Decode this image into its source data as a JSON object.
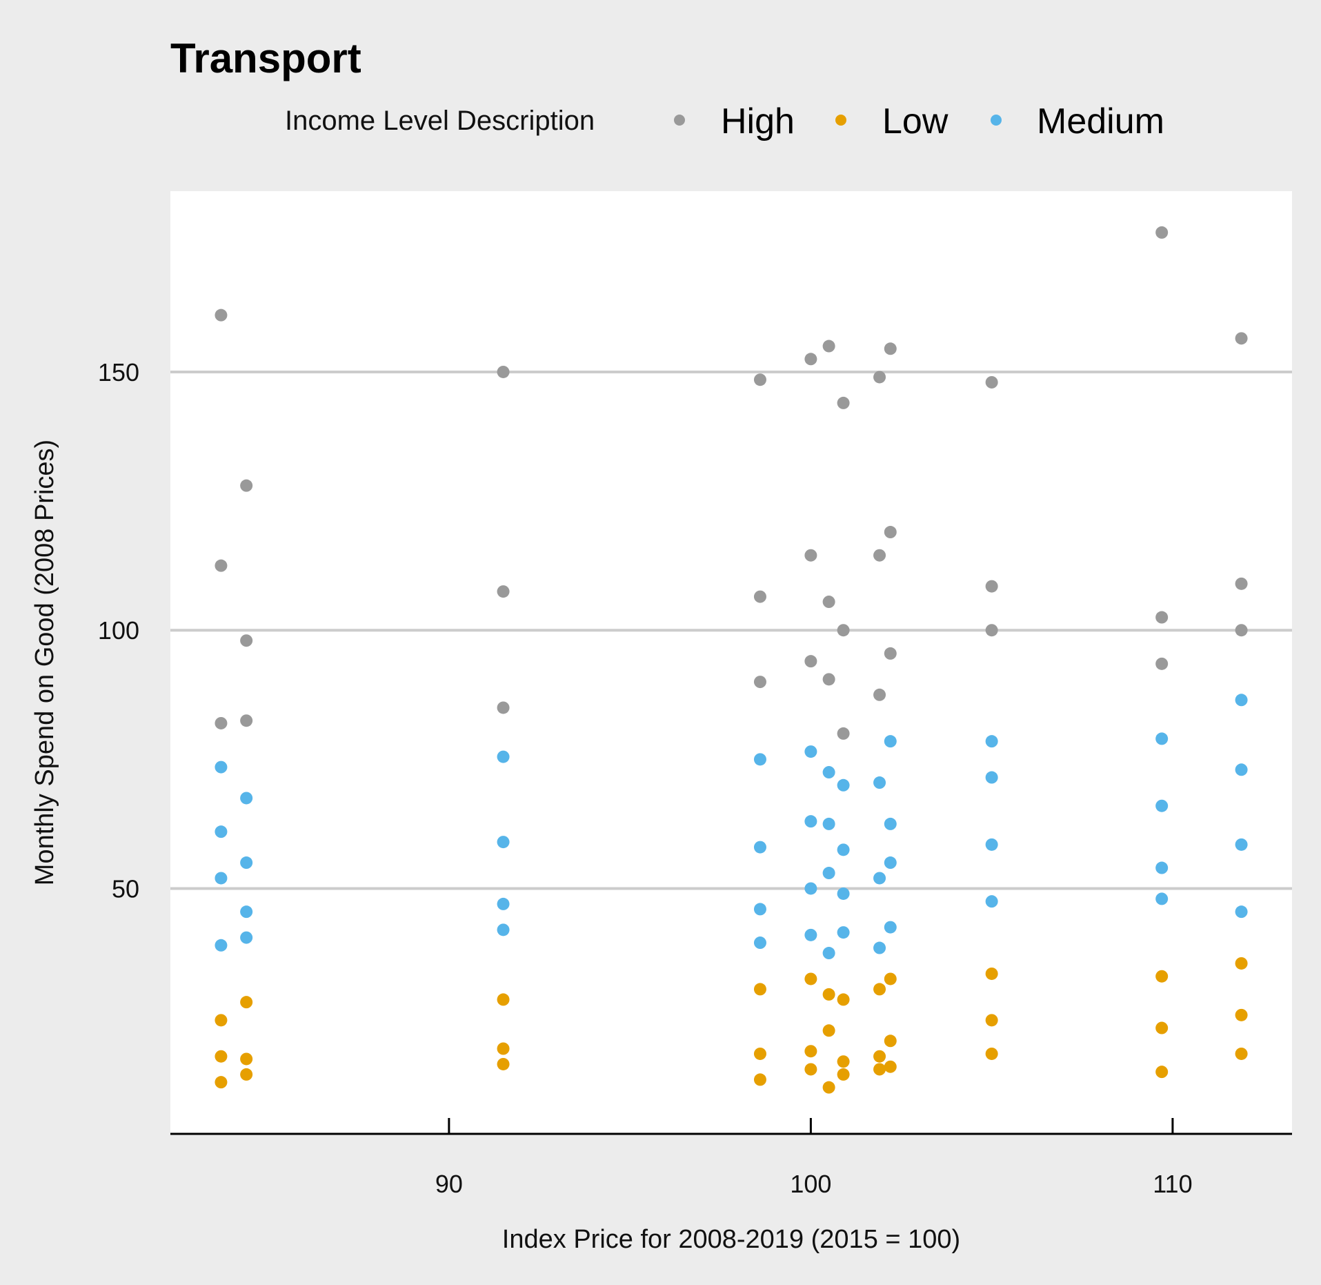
{
  "colors": {
    "background": "#ececec",
    "panel": "#ffffff",
    "gridline": "#cccccc",
    "axis": "#000000",
    "High": "#999999",
    "Low": "#e69f00",
    "Medium": "#56b4e9"
  },
  "chart_data": {
    "type": "scatter",
    "title": "Transport",
    "xlabel": "Index Price for 2008-2019 (2015 = 100)",
    "ylabel": "Monthly Spend on Good (2008 Prices)",
    "xlim": [
      82.3,
      113.3
    ],
    "ylim": [
      2.5,
      185
    ],
    "xticks": [
      90,
      100,
      110
    ],
    "yticks": [
      50,
      100,
      150
    ],
    "grid": "horizontal major",
    "legend": {
      "title": "Income Level Description",
      "position": "top",
      "entries": [
        "High",
        "Low",
        "Medium"
      ]
    },
    "series": [
      {
        "name": "High",
        "points": [
          [
            83.7,
            161
          ],
          [
            83.7,
            112.5
          ],
          [
            83.7,
            82
          ],
          [
            84.4,
            128
          ],
          [
            84.4,
            98
          ],
          [
            84.4,
            82.5
          ],
          [
            91.5,
            150
          ],
          [
            91.5,
            107.5
          ],
          [
            91.5,
            85
          ],
          [
            98.6,
            148.5
          ],
          [
            98.6,
            106.5
          ],
          [
            98.6,
            90
          ],
          [
            100,
            152.5
          ],
          [
            100,
            114.5
          ],
          [
            100,
            94
          ],
          [
            100.5,
            155
          ],
          [
            100.5,
            105.5
          ],
          [
            100.5,
            90.5
          ],
          [
            100.9,
            144
          ],
          [
            100.9,
            100
          ],
          [
            100.9,
            80
          ],
          [
            101.9,
            149
          ],
          [
            101.9,
            114.5
          ],
          [
            101.9,
            87.5
          ],
          [
            102.2,
            154.5
          ],
          [
            102.2,
            119
          ],
          [
            102.2,
            95.5
          ],
          [
            105,
            148
          ],
          [
            105,
            108.5
          ],
          [
            105,
            100
          ],
          [
            109.7,
            177
          ],
          [
            109.7,
            102.5
          ],
          [
            109.7,
            93.5
          ],
          [
            111.9,
            156.5
          ],
          [
            111.9,
            109
          ],
          [
            111.9,
            100
          ]
        ]
      },
      {
        "name": "Low",
        "points": [
          [
            83.7,
            24.5
          ],
          [
            83.7,
            17.5
          ],
          [
            83.7,
            12.5
          ],
          [
            84.4,
            28
          ],
          [
            84.4,
            17
          ],
          [
            84.4,
            14
          ],
          [
            91.5,
            28.5
          ],
          [
            91.5,
            19
          ],
          [
            91.5,
            16
          ],
          [
            98.6,
            30.5
          ],
          [
            98.6,
            18
          ],
          [
            98.6,
            13
          ],
          [
            100,
            32.5
          ],
          [
            100,
            18.5
          ],
          [
            100,
            15
          ],
          [
            100.5,
            29.5
          ],
          [
            100.5,
            22.5
          ],
          [
            100.5,
            11.5
          ],
          [
            100.9,
            28.5
          ],
          [
            100.9,
            16.5
          ],
          [
            100.9,
            14
          ],
          [
            101.9,
            30.5
          ],
          [
            101.9,
            17.5
          ],
          [
            101.9,
            15
          ],
          [
            102.2,
            32.5
          ],
          [
            102.2,
            20.5
          ],
          [
            102.2,
            15.5
          ],
          [
            105,
            33.5
          ],
          [
            105,
            24.5
          ],
          [
            105,
            18
          ],
          [
            109.7,
            33
          ],
          [
            109.7,
            23
          ],
          [
            109.7,
            14.5
          ],
          [
            111.9,
            35.5
          ],
          [
            111.9,
            25.5
          ],
          [
            111.9,
            18
          ]
        ]
      },
      {
        "name": "Medium",
        "points": [
          [
            83.7,
            73.5
          ],
          [
            83.7,
            61
          ],
          [
            83.7,
            52
          ],
          [
            83.7,
            39
          ],
          [
            84.4,
            67.5
          ],
          [
            84.4,
            55
          ],
          [
            84.4,
            45.5
          ],
          [
            84.4,
            40.5
          ],
          [
            91.5,
            75.5
          ],
          [
            91.5,
            59
          ],
          [
            91.5,
            47
          ],
          [
            91.5,
            42
          ],
          [
            98.6,
            75
          ],
          [
            98.6,
            58
          ],
          [
            98.6,
            46
          ],
          [
            98.6,
            39.5
          ],
          [
            100,
            76.5
          ],
          [
            100,
            63
          ],
          [
            100,
            50
          ],
          [
            100,
            41
          ],
          [
            100.5,
            72.5
          ],
          [
            100.5,
            62.5
          ],
          [
            100.5,
            53
          ],
          [
            100.5,
            37.5
          ],
          [
            100.9,
            70
          ],
          [
            100.9,
            57.5
          ],
          [
            100.9,
            49
          ],
          [
            100.9,
            41.5
          ],
          [
            101.9,
            70.5
          ],
          [
            101.9,
            52
          ],
          [
            101.9,
            38.5
          ],
          [
            102.2,
            78.5
          ],
          [
            102.2,
            62.5
          ],
          [
            102.2,
            55
          ],
          [
            102.2,
            42.5
          ],
          [
            105,
            78.5
          ],
          [
            105,
            71.5
          ],
          [
            105,
            58.5
          ],
          [
            105,
            47.5
          ],
          [
            109.7,
            79
          ],
          [
            109.7,
            66
          ],
          [
            109.7,
            54
          ],
          [
            109.7,
            48
          ],
          [
            111.9,
            86.5
          ],
          [
            111.9,
            73
          ],
          [
            111.9,
            58.5
          ],
          [
            111.9,
            45.5
          ]
        ]
      }
    ]
  }
}
